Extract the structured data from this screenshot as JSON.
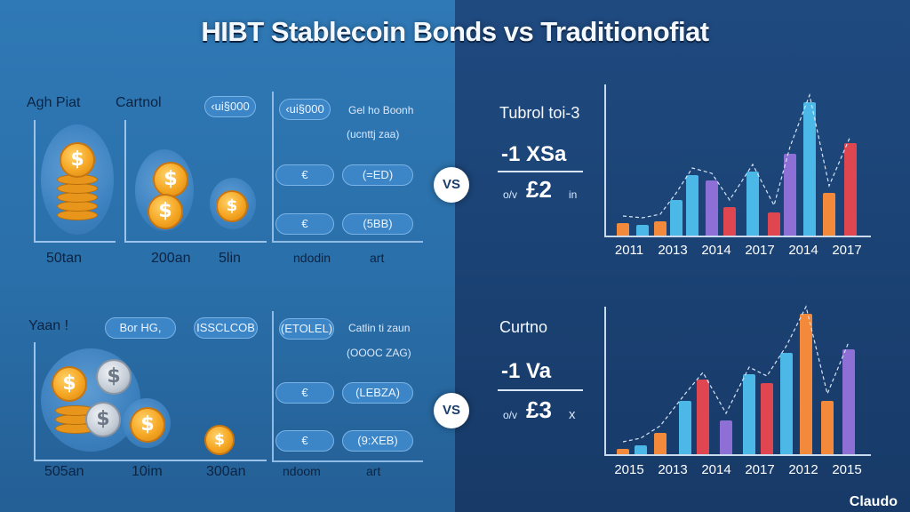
{
  "title": "HIBT Stablecoin Bonds vs Traditionofiat",
  "top_left": {
    "label_a": "Agh Piat",
    "label_b": "Cartnol",
    "tag_arrow": "‹ui§000",
    "side_line1": "Gel ho Boonh",
    "side_line2": "(ucnttj zaa)",
    "pill1": "‹ui§000",
    "pill2": "(=ED)",
    "pill3": "(5BB)",
    "value_a": "50tan",
    "value_b": "200an",
    "value_c": "5lin",
    "value_d": "ndodin",
    "value_e": "art"
  },
  "bottom_left": {
    "label_a": "Yaan !",
    "tag_a": "Bor HG,",
    "tag_b": "ISSCLCOB",
    "side_line1": "Catlin ti zaun",
    "side_line2": "(OOOC ZAG)",
    "pill1": "(ETOLEL)",
    "pill2": "(LEBZA)",
    "pill3": "(9:XEB)",
    "value_a": "505an",
    "value_b": "10im",
    "value_c": "300an",
    "value_d": "ndoom",
    "value_e": "art"
  },
  "vs_label": "VS",
  "top_right": {
    "heading": "Tubrol toi-3",
    "line1": "-1 XSa",
    "prefix": "o/v",
    "line2": "£2",
    "suffix": "in",
    "years": [
      "2011",
      "2013",
      "2014",
      "2017",
      "2014",
      "2017"
    ]
  },
  "bottom_right": {
    "heading": "Curtno",
    "line1": "-1 Va",
    "prefix": "o/v",
    "line2": "£3",
    "suffix": "x",
    "years": [
      "2015",
      "2013",
      "2014",
      "2017",
      "2012",
      "2015"
    ]
  },
  "brand": "Claudo",
  "colors": {
    "left_bg": "#2f79b6",
    "right_bg": "#1f4a80",
    "coin_gold": "#f5a623",
    "bar_blue": "#4bb8e8",
    "bar_purple": "#8d6fd6",
    "bar_red": "#e0464f",
    "bar_orange": "#f3893a"
  }
}
